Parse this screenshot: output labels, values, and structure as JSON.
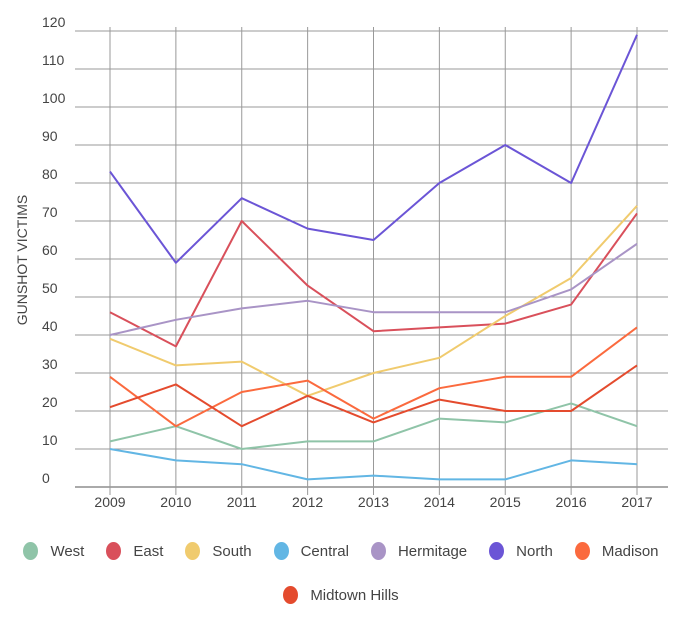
{
  "chart_data": {
    "type": "line",
    "title": "",
    "xlabel": "",
    "ylabel": "GUNSHOT VICTIMS",
    "ylim": [
      0,
      120
    ],
    "yticks": [
      0,
      10,
      20,
      30,
      40,
      50,
      60,
      70,
      80,
      90,
      100,
      110,
      120
    ],
    "grid": true,
    "legend_position": "bottom",
    "x": [
      "2009",
      "2010",
      "2011",
      "2012",
      "2013",
      "2014",
      "2015",
      "2016",
      "2017"
    ],
    "series": [
      {
        "name": "West",
        "color": "#8fc4a8",
        "values": [
          12,
          16,
          10,
          12,
          12,
          18,
          17,
          22,
          16
        ]
      },
      {
        "name": "East",
        "color": "#d9505b",
        "values": [
          46,
          37,
          70,
          53,
          41,
          42,
          43,
          48,
          72
        ]
      },
      {
        "name": "South",
        "color": "#f0cb6e",
        "values": [
          39,
          32,
          33,
          24,
          30,
          34,
          45,
          55,
          74
        ]
      },
      {
        "name": "Central",
        "color": "#62b6e4",
        "values": [
          10,
          7,
          6,
          2,
          3,
          2,
          2,
          7,
          6
        ]
      },
      {
        "name": "Hermitage",
        "color": "#a994c6",
        "values": [
          40,
          44,
          47,
          49,
          46,
          46,
          46,
          52,
          64
        ]
      },
      {
        "name": "North",
        "color": "#6b55d6",
        "values": [
          83,
          59,
          76,
          68,
          65,
          80,
          90,
          80,
          119
        ]
      },
      {
        "name": "Madison",
        "color": "#fb6a3e",
        "values": [
          29,
          16,
          25,
          28,
          18,
          26,
          29,
          29,
          42
        ]
      },
      {
        "name": "Midtown Hills",
        "color": "#e44b2e",
        "values": [
          21,
          27,
          16,
          24,
          17,
          23,
          20,
          20,
          32
        ]
      }
    ]
  }
}
